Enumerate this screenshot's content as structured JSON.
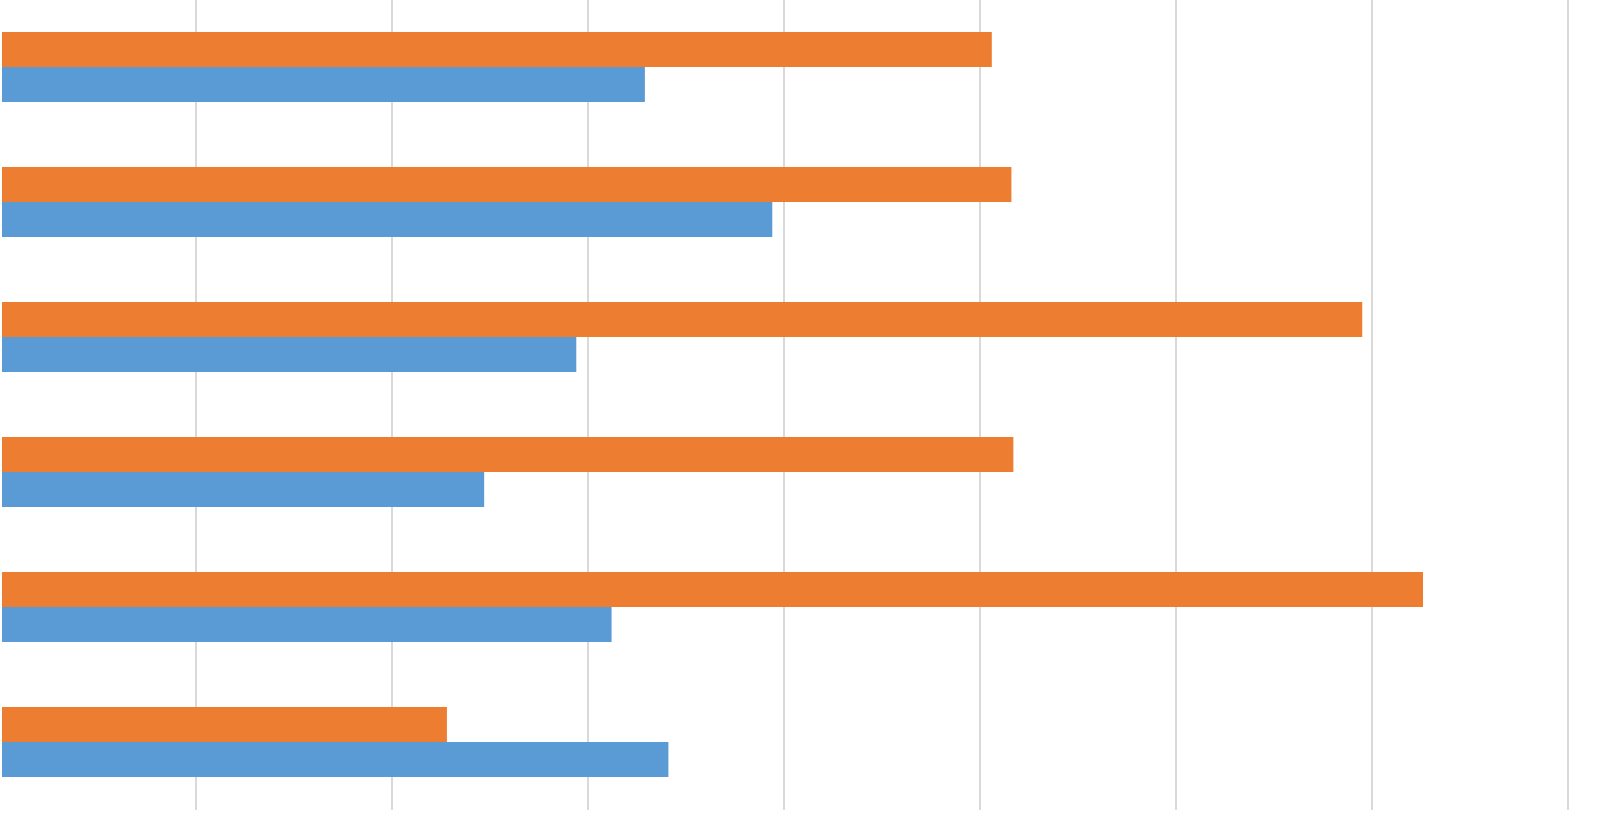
{
  "chart_data": {
    "type": "bar",
    "orientation": "horizontal",
    "categories": [
      "",
      "",
      "",
      "",
      "",
      ""
    ],
    "series": [
      {
        "values": [
          5.05,
          5.15,
          6.94,
          5.16,
          7.25,
          2.27
        ],
        "color": "#ED7D31"
      },
      {
        "values": [
          3.28,
          3.93,
          2.93,
          2.46,
          3.11,
          3.4
        ],
        "color": "#5B9BD5"
      }
    ],
    "xlim": [
      0,
      8
    ],
    "x_tick_step": 1,
    "grid": true,
    "grid_color": "#D9D9D9",
    "legend": "none",
    "title": "",
    "xlabel": "",
    "ylabel": ""
  }
}
